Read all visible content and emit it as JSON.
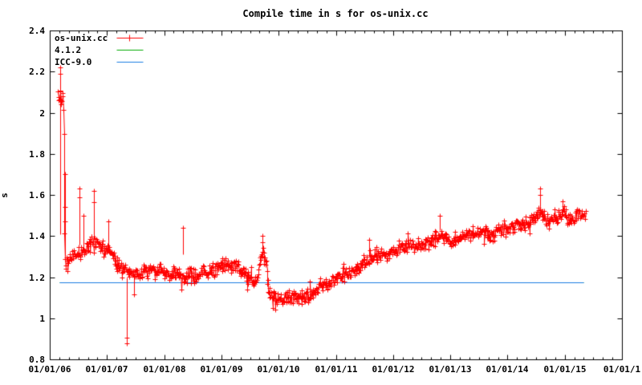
{
  "title": "Compile time in s for os-unix.cc",
  "chart_data": {
    "type": "scatter",
    "title": "Compile time in s for os-unix.cc",
    "xlabel": "",
    "ylabel": "s",
    "ylim": [
      0.8,
      2.4
    ],
    "xlim_years": [
      2006,
      2016
    ],
    "grid": false,
    "legend_position": "top-left",
    "y_tick_labels": [
      "0.8",
      "1",
      "1.2",
      "1.4",
      "1.6",
      "1.8",
      "2",
      "2.2",
      "2.4"
    ],
    "y_tick_values": [
      0.8,
      1.0,
      1.2,
      1.4,
      1.6,
      1.8,
      2.0,
      2.2,
      2.4
    ],
    "x_tick_labels": [
      "01/01/06",
      "01/01/07",
      "01/01/08",
      "01/01/09",
      "01/01/10",
      "01/01/11",
      "01/01/12",
      "01/01/13",
      "01/01/14",
      "01/01/15",
      "01/01/1"
    ],
    "x_minor_divisions": 6,
    "colors": {
      "series": "#ff0000",
      "gcc412": "#00aa00",
      "icc90": "#1b7ce0",
      "axis": "#000000"
    },
    "legend": [
      {
        "label": "os-unix.cc",
        "color": "#ff0000",
        "style": "line-with-plus"
      },
      {
        "label": "4.1.2",
        "color": "#00aa00",
        "style": "line"
      },
      {
        "label": "ICC-9.0",
        "color": "#1b7ce0",
        "style": "line"
      }
    ],
    "series": [
      {
        "name": "os-unix.cc",
        "color": "#ff0000",
        "marker": "plus",
        "style": "noisy-band-with-connecting-lines",
        "t_range_years_since_2006": [
          0.14,
          9.37
        ],
        "sample_interval_years": 0.009,
        "noise_amplitude": 0.021,
        "trend": [
          [
            0.14,
            2.1
          ],
          [
            0.16,
            2.06
          ],
          [
            0.18,
            2.11
          ],
          [
            0.2,
            2.07
          ],
          [
            0.22,
            2.1
          ],
          [
            0.245,
            2.05
          ],
          [
            0.26,
            1.26
          ],
          [
            0.32,
            1.275
          ],
          [
            0.4,
            1.3
          ],
          [
            0.5,
            1.315
          ],
          [
            0.6,
            1.33
          ],
          [
            0.68,
            1.35
          ],
          [
            0.76,
            1.375
          ],
          [
            0.84,
            1.375
          ],
          [
            0.92,
            1.35
          ],
          [
            1.0,
            1.33
          ],
          [
            1.1,
            1.295
          ],
          [
            1.2,
            1.26
          ],
          [
            1.3,
            1.235
          ],
          [
            1.4,
            1.22
          ],
          [
            1.55,
            1.215
          ],
          [
            1.65,
            1.22
          ],
          [
            1.75,
            1.235
          ],
          [
            1.85,
            1.235
          ],
          [
            1.95,
            1.225
          ],
          [
            2.05,
            1.21
          ],
          [
            2.15,
            1.22
          ],
          [
            2.25,
            1.21
          ],
          [
            2.35,
            1.2
          ],
          [
            2.45,
            1.21
          ],
          [
            2.55,
            1.2
          ],
          [
            2.65,
            1.215
          ],
          [
            2.75,
            1.225
          ],
          [
            2.85,
            1.235
          ],
          [
            2.95,
            1.245
          ],
          [
            3.1,
            1.26
          ],
          [
            3.25,
            1.25
          ],
          [
            3.4,
            1.22
          ],
          [
            3.55,
            1.185
          ],
          [
            3.62,
            1.18
          ],
          [
            3.66,
            1.28
          ],
          [
            3.72,
            1.315
          ],
          [
            3.78,
            1.27
          ],
          [
            3.82,
            1.13
          ],
          [
            3.9,
            1.105
          ],
          [
            4.0,
            1.095
          ],
          [
            4.1,
            1.09
          ],
          [
            4.25,
            1.1
          ],
          [
            4.4,
            1.105
          ],
          [
            4.55,
            1.11
          ],
          [
            4.7,
            1.15
          ],
          [
            4.85,
            1.17
          ],
          [
            5.0,
            1.19
          ],
          [
            5.15,
            1.21
          ],
          [
            5.3,
            1.235
          ],
          [
            5.45,
            1.265
          ],
          [
            5.6,
            1.295
          ],
          [
            5.75,
            1.31
          ],
          [
            5.9,
            1.305
          ],
          [
            6.05,
            1.34
          ],
          [
            6.2,
            1.35
          ],
          [
            6.35,
            1.345
          ],
          [
            6.5,
            1.36
          ],
          [
            6.65,
            1.375
          ],
          [
            6.8,
            1.41
          ],
          [
            6.9,
            1.39
          ],
          [
            7.0,
            1.375
          ],
          [
            7.15,
            1.39
          ],
          [
            7.3,
            1.41
          ],
          [
            7.45,
            1.42
          ],
          [
            7.6,
            1.425
          ],
          [
            7.72,
            1.4
          ],
          [
            7.85,
            1.425
          ],
          [
            8.0,
            1.44
          ],
          [
            8.15,
            1.45
          ],
          [
            8.3,
            1.455
          ],
          [
            8.45,
            1.48
          ],
          [
            8.55,
            1.525
          ],
          [
            8.62,
            1.5
          ],
          [
            8.72,
            1.47
          ],
          [
            8.82,
            1.49
          ],
          [
            8.92,
            1.505
          ],
          [
            8.98,
            1.53
          ],
          [
            9.05,
            1.49
          ],
          [
            9.12,
            1.475
          ],
          [
            9.2,
            1.5
          ],
          [
            9.28,
            1.515
          ],
          [
            9.37,
            1.5
          ]
        ],
        "spikes": [
          [
            0.187,
            1.41,
            2.22,
            [
              2.22,
              2.19
            ]
          ],
          [
            0.271,
            1.29,
            1.7,
            [
              1.7,
              1.54,
              1.47
            ]
          ],
          [
            0.52,
            1.36,
            1.63,
            [
              1.63,
              1.59
            ]
          ],
          [
            0.59,
            1.335,
            1.5,
            [
              1.5
            ]
          ],
          [
            0.77,
            1.38,
            1.62,
            [
              1.62,
              1.565
            ]
          ],
          [
            1.02,
            1.32,
            1.47,
            [
              1.47
            ]
          ],
          [
            1.35,
            0.88,
            1.2,
            [
              0.88,
              0.905
            ]
          ],
          [
            1.47,
            1.115,
            1.2,
            [
              1.115
            ]
          ],
          [
            2.33,
            1.31,
            1.44,
            [
              1.44
            ]
          ],
          [
            3.45,
            1.14,
            1.2,
            [
              1.14
            ]
          ],
          [
            3.71,
            1.3,
            1.4,
            [
              1.4,
              1.37
            ]
          ],
          [
            5.58,
            1.3,
            1.38,
            [
              1.38
            ]
          ],
          [
            6.82,
            1.43,
            1.5,
            [
              1.5
            ]
          ],
          [
            8.57,
            1.5,
            1.63,
            [
              1.63,
              1.6
            ]
          ],
          [
            8.96,
            1.5,
            1.57,
            [
              1.57
            ]
          ]
        ]
      },
      {
        "name": "4.1.2",
        "type": "hline",
        "color": "#00aa00",
        "value": 1.175,
        "t_range_years_since_2006": [
          0.168,
          9.327
        ]
      },
      {
        "name": "ICC-9.0",
        "type": "hline",
        "color": "#1b7ce0",
        "value": 1.175,
        "t_range_years_since_2006": [
          0.168,
          9.327
        ]
      }
    ]
  }
}
